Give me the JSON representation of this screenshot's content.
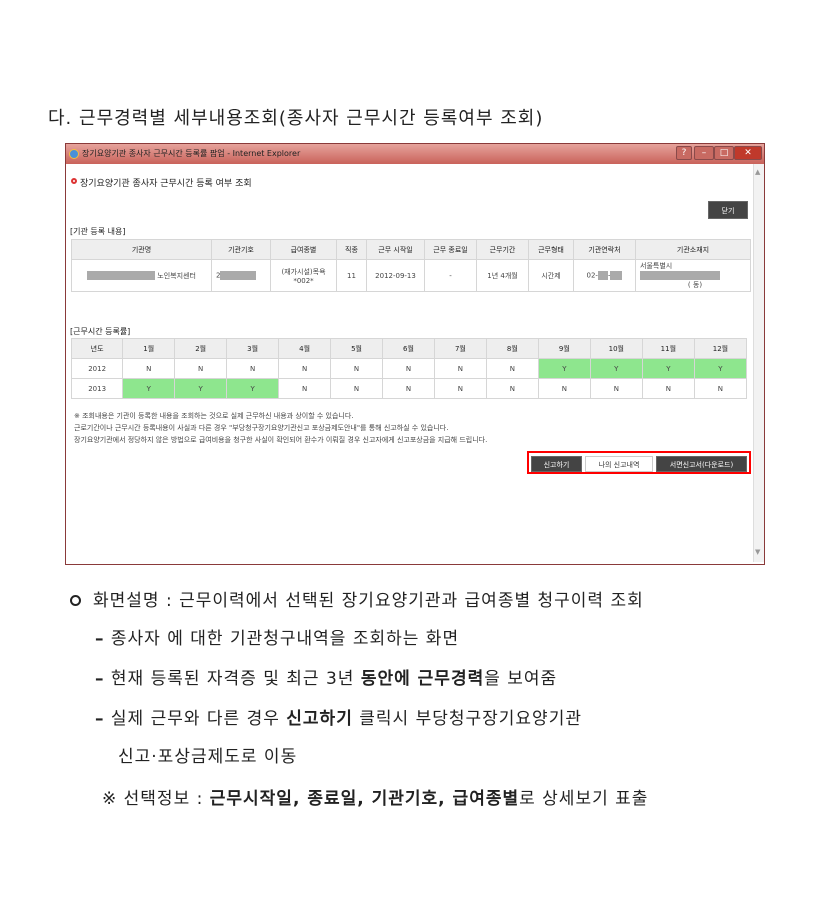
{
  "heading": "다. 근무경력별 세부내용조회(종사자 근무시간 등록여부 조회)",
  "window": {
    "title": "장기요양기관 종사자 근무시간 등록률 팝업 - Internet Explorer",
    "page_title": "장기요양기관 종사자 근무시간 등록 여부 조회",
    "close_label": "닫기",
    "section1": "[기관 등록 내용]",
    "table1": {
      "headers": [
        "기관명",
        "기관기호",
        "급여종별",
        "직종",
        "근무 시작일",
        "근무 종료일",
        "근무기간",
        "근무형태",
        "기관연락처",
        "기관소재지"
      ],
      "row": {
        "name": "노인복지센터",
        "code": "2",
        "type1": "(재가시설)목욕",
        "type2": "*002*",
        "job": "11",
        "start": "2012-09-13",
        "end": "-",
        "period": "1년 4개월",
        "form": "시간제",
        "phone": "02-",
        "addr1": "서울특별시",
        "addr2": "(    동)"
      }
    },
    "section2": "[근무시간 등록률]",
    "table2": {
      "headers": [
        "년도",
        "1월",
        "2월",
        "3월",
        "4월",
        "5월",
        "6월",
        "7월",
        "8월",
        "9월",
        "10월",
        "11월",
        "12월"
      ],
      "rows": [
        {
          "year": "2012",
          "values": [
            "N",
            "N",
            "N",
            "N",
            "N",
            "N",
            "N",
            "N",
            "Y",
            "Y",
            "Y",
            "Y"
          ]
        },
        {
          "year": "2013",
          "values": [
            "Y",
            "Y",
            "Y",
            "N",
            "N",
            "N",
            "N",
            "N",
            "N",
            "N",
            "N",
            "N"
          ]
        }
      ]
    },
    "notes": [
      "※ 조회내용은 기관이 등록한 내용을 조회하는 것으로 실제 근무하신 내용과 상이할 수 있습니다.",
      "근로기간이나 근무시간 등록내용이 사실과 다른 경우 \"부당청구장기요양기관신고 포상금제도안내\"를 통해 신고하실 수 있습니다.",
      "장기요양기관에서 정당하지 않은 방법으로 급여비용을 청구한 사실이 확인되어 환수가 이뤄질 경우 신고자에게 신고포상금을 지급해 드립니다."
    ],
    "buttons": [
      "신고하기",
      "나의 신고내역",
      "서면신고서(다운로드)"
    ],
    "highlight_color": "#ff0000",
    "yes_color": "#8ee68e"
  },
  "bullets": {
    "b1": "화면설명 : 근무이력에서 선택된 장기요양기관과 급여종별 청구이력 조회",
    "b2": "종사자 에 대한 기관청구내역을 조회하는 화면",
    "b3a": "현재 등록된 자격증 및 최근 3년 ",
    "b3b": "동안에 근무경력",
    "b3c": "을 보여줌",
    "b4a": "실제 근무와 다른 경우 ",
    "b4b": "신고하기",
    "b4c": " 클릭시 부당청구장기요양기관",
    "b5": "신고·포상금제도로 이동",
    "b6a": "※ 선택정보 : ",
    "b6b": "근무시작일, 종료일, 기관기호, 급여종별",
    "b6c": "로 상세보기 표출"
  }
}
